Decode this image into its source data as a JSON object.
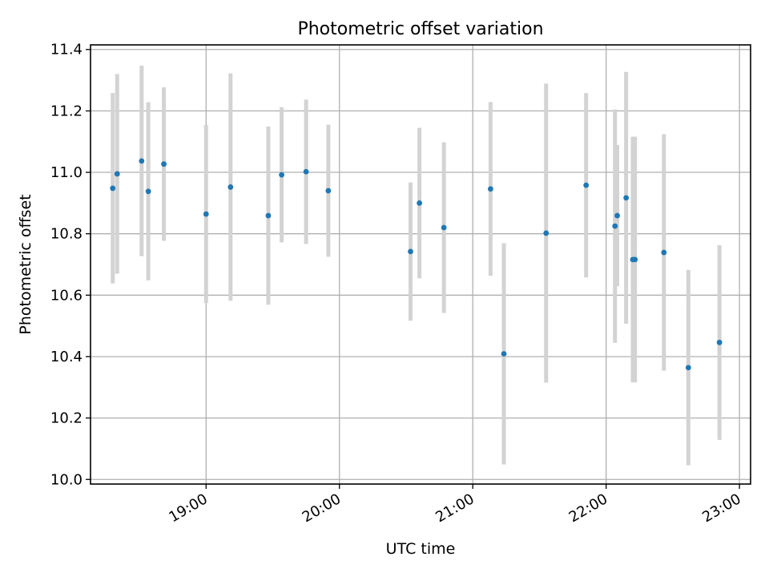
{
  "chart_data": {
    "type": "scatter",
    "title": "Photometric offset variation",
    "xlabel": "UTC time",
    "ylabel": "Photometric offset",
    "x_format": "time HH:MM",
    "xlim": [
      "18:08",
      "23:05"
    ],
    "ylim": [
      9.985,
      11.415
    ],
    "xticks": [
      "19:00",
      "20:00",
      "21:00",
      "22:00",
      "23:00"
    ],
    "yticks": [
      10.0,
      10.2,
      10.4,
      10.6,
      10.8,
      11.0,
      11.2,
      11.4
    ],
    "grid": true,
    "marker_color": "#1f77b4",
    "errorbar_color": "#d3d3d3",
    "series": [
      {
        "points": [
          {
            "x": "18:18",
            "y": 10.948,
            "err": 0.31
          },
          {
            "x": "18:20",
            "y": 10.995,
            "err": 0.325
          },
          {
            "x": "18:31",
            "y": 11.037,
            "err": 0.31
          },
          {
            "x": "18:34",
            "y": 10.938,
            "err": 0.29
          },
          {
            "x": "18:41",
            "y": 11.027,
            "err": 0.25
          },
          {
            "x": "19:00",
            "y": 10.864,
            "err": 0.29
          },
          {
            "x": "19:11",
            "y": 10.952,
            "err": 0.37
          },
          {
            "x": "19:28",
            "y": 10.859,
            "err": 0.29
          },
          {
            "x": "19:34",
            "y": 10.992,
            "err": 0.22
          },
          {
            "x": "19:45",
            "y": 11.002,
            "err": 0.235
          },
          {
            "x": "19:55",
            "y": 10.94,
            "err": 0.215
          },
          {
            "x": "20:32",
            "y": 10.742,
            "err": 0.225
          },
          {
            "x": "20:36",
            "y": 10.9,
            "err": 0.245
          },
          {
            "x": "20:47",
            "y": 10.82,
            "err": 0.278
          },
          {
            "x": "21:08",
            "y": 10.946,
            "err": 0.283
          },
          {
            "x": "21:14",
            "y": 10.409,
            "err": 0.36
          },
          {
            "x": "21:33",
            "y": 10.802,
            "err": 0.487
          },
          {
            "x": "21:51",
            "y": 10.958,
            "err": 0.3
          },
          {
            "x": "22:04",
            "y": 10.825,
            "err": 0.38
          },
          {
            "x": "22:05",
            "y": 10.859,
            "err": 0.23
          },
          {
            "x": "22:09",
            "y": 10.917,
            "err": 0.41
          },
          {
            "x": "22:12",
            "y": 10.716,
            "err": 0.4
          },
          {
            "x": "22:13",
            "y": 10.716,
            "err": 0.4
          },
          {
            "x": "22:26",
            "y": 10.739,
            "err": 0.385
          },
          {
            "x": "22:37",
            "y": 10.364,
            "err": 0.318
          },
          {
            "x": "22:51",
            "y": 10.446,
            "err": 0.317
          }
        ]
      }
    ]
  }
}
